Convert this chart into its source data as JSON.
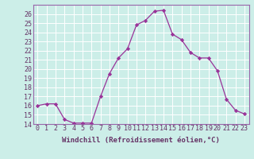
{
  "x": [
    0,
    1,
    2,
    3,
    4,
    5,
    6,
    7,
    8,
    9,
    10,
    11,
    12,
    13,
    14,
    15,
    16,
    17,
    18,
    19,
    20,
    21,
    22,
    23
  ],
  "y": [
    16.0,
    16.2,
    16.2,
    14.5,
    14.1,
    14.1,
    14.1,
    17.0,
    19.5,
    21.2,
    22.2,
    24.8,
    25.3,
    26.3,
    26.4,
    23.8,
    23.2,
    21.8,
    21.2,
    21.2,
    19.8,
    16.7,
    15.5,
    15.1
  ],
  "line_color": "#993399",
  "marker": "D",
  "marker_size": 2.2,
  "bg_color": "#cceee8",
  "grid_color": "#bbdddd",
  "xlabel": "Windchill (Refroidissement éolien,°C)",
  "xlabel_fontsize": 6.5,
  "tick_fontsize": 6.0,
  "ylim": [
    14,
    27
  ],
  "xlim": [
    -0.5,
    23.5
  ],
  "yticks": [
    14,
    15,
    16,
    17,
    18,
    19,
    20,
    21,
    22,
    23,
    24,
    25,
    26
  ],
  "xticks": [
    0,
    1,
    2,
    3,
    4,
    5,
    6,
    7,
    8,
    9,
    10,
    11,
    12,
    13,
    14,
    15,
    16,
    17,
    18,
    19,
    20,
    21,
    22,
    23
  ]
}
